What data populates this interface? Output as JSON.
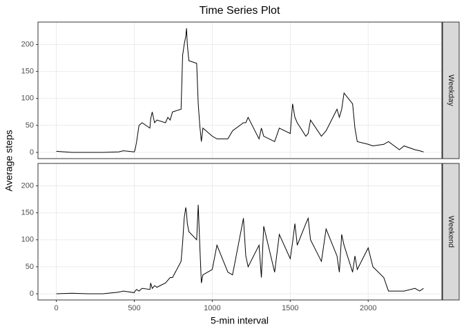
{
  "chart_data": {
    "type": "line",
    "title": "Time Series Plot",
    "x_label": "5-min interval",
    "y_label": "Average steps",
    "facets": true,
    "grid": true,
    "xlim": [
      -117.75,
      2472.75
    ],
    "xticks": [
      0,
      500,
      1000,
      1500,
      2000
    ],
    "ylim": [
      -11.5,
      241.5
    ],
    "yticks": [
      0,
      50,
      100,
      150,
      200
    ],
    "x": [
      0,
      100,
      200,
      300,
      400,
      430,
      500,
      505,
      515,
      530,
      550,
      600,
      605,
      615,
      630,
      645,
      700,
      715,
      730,
      745,
      800,
      810,
      820,
      830,
      835,
      840,
      850,
      900,
      910,
      920,
      930,
      940,
      1000,
      1030,
      1100,
      1130,
      1200,
      1215,
      1230,
      1300,
      1315,
      1330,
      1400,
      1430,
      1500,
      1515,
      1530,
      1545,
      1600,
      1615,
      1630,
      1700,
      1730,
      1800,
      1815,
      1830,
      1845,
      1900,
      1915,
      1930,
      2000,
      2030,
      2100,
      2130,
      2200,
      2230,
      2300,
      2330,
      2355
    ],
    "series": [
      {
        "name": "Weekday",
        "color": "#000000",
        "values": [
          2,
          0,
          0,
          0,
          1,
          3,
          1,
          5,
          20,
          50,
          55,
          45,
          62,
          75,
          55,
          60,
          55,
          65,
          60,
          75,
          80,
          180,
          200,
          215,
          230,
          200,
          170,
          165,
          90,
          50,
          20,
          45,
          30,
          25,
          25,
          40,
          55,
          55,
          65,
          25,
          45,
          30,
          20,
          45,
          35,
          90,
          65,
          55,
          30,
          35,
          60,
          30,
          40,
          80,
          65,
          80,
          110,
          90,
          45,
          20,
          15,
          12,
          15,
          20,
          5,
          12,
          5,
          3,
          1
        ]
      },
      {
        "name": "Weekend",
        "color": "#000000",
        "values": [
          0,
          1,
          0,
          0,
          3,
          5,
          2,
          5,
          8,
          5,
          10,
          8,
          20,
          10,
          15,
          12,
          20,
          25,
          30,
          30,
          60,
          95,
          140,
          160,
          150,
          130,
          115,
          100,
          165,
          90,
          20,
          35,
          45,
          90,
          40,
          35,
          140,
          70,
          50,
          90,
          30,
          125,
          40,
          110,
          65,
          95,
          130,
          90,
          130,
          140,
          100,
          60,
          120,
          70,
          40,
          110,
          90,
          40,
          70,
          45,
          85,
          50,
          30,
          5,
          5,
          5,
          10,
          5,
          10
        ]
      }
    ]
  }
}
